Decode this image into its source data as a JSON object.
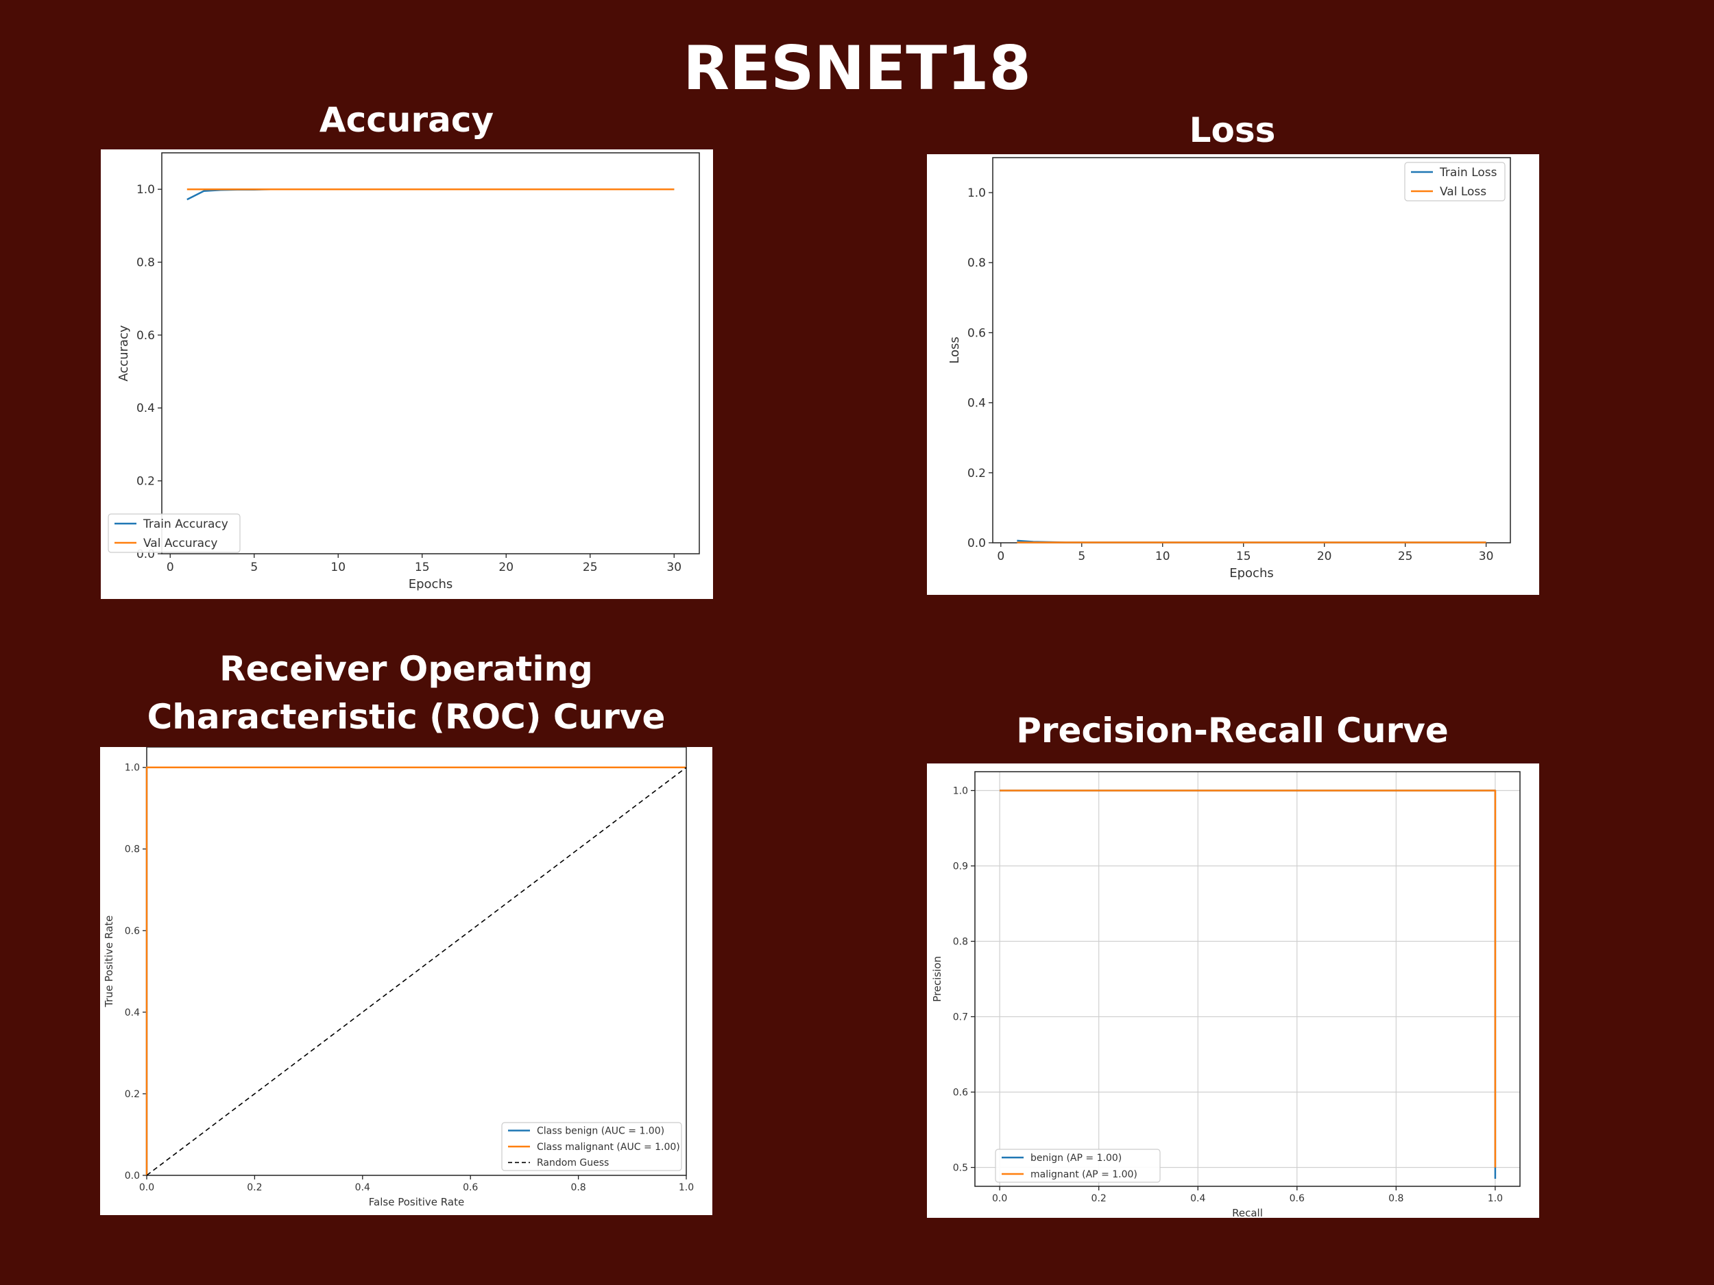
{
  "page": {
    "title": "RESNET18",
    "colors": {
      "background": "#4a0c05",
      "series_blue": "#1f77b4",
      "series_orange": "#ff7f0e"
    }
  },
  "chart_data": [
    {
      "id": "accuracy",
      "type": "line",
      "title": "Accuracy",
      "xlabel": "Epochs",
      "ylabel": "Accuracy",
      "xlim": [
        -0.5,
        31.5
      ],
      "ylim": [
        0,
        1.1
      ],
      "xticks": [
        0,
        5,
        10,
        15,
        20,
        25,
        30
      ],
      "yticks": [
        0.0,
        0.2,
        0.4,
        0.6,
        0.8,
        1.0
      ],
      "grid": false,
      "legend": "lower left",
      "x": [
        1,
        2,
        3,
        4,
        5,
        6,
        7,
        8,
        9,
        10,
        11,
        12,
        13,
        14,
        15,
        16,
        17,
        18,
        19,
        20,
        21,
        22,
        23,
        24,
        25,
        26,
        27,
        28,
        29,
        30
      ],
      "series": [
        {
          "name": "Train Accuracy",
          "color": "#1f77b4",
          "values": [
            0.972,
            0.995,
            0.998,
            0.999,
            0.999,
            1.0,
            1.0,
            1.0,
            1.0,
            1.0,
            1.0,
            1.0,
            1.0,
            1.0,
            1.0,
            1.0,
            1.0,
            1.0,
            1.0,
            1.0,
            1.0,
            1.0,
            1.0,
            1.0,
            1.0,
            1.0,
            1.0,
            1.0,
            1.0,
            1.0
          ]
        },
        {
          "name": "Val Accuracy",
          "color": "#ff7f0e",
          "values": [
            1.0,
            1.0,
            1.0,
            1.0,
            1.0,
            1.0,
            1.0,
            1.0,
            1.0,
            1.0,
            1.0,
            1.0,
            1.0,
            1.0,
            1.0,
            1.0,
            1.0,
            1.0,
            1.0,
            1.0,
            1.0,
            1.0,
            1.0,
            1.0,
            1.0,
            1.0,
            1.0,
            1.0,
            1.0,
            1.0
          ]
        }
      ]
    },
    {
      "id": "loss",
      "type": "line",
      "title": "Loss",
      "xlabel": "Epochs",
      "ylabel": "Loss",
      "xlim": [
        -0.5,
        31.5
      ],
      "ylim": [
        0,
        1.1
      ],
      "xticks": [
        0,
        5,
        10,
        15,
        20,
        25,
        30
      ],
      "yticks": [
        0.0,
        0.2,
        0.4,
        0.6,
        0.8,
        1.0
      ],
      "grid": false,
      "legend": "upper right",
      "x": [
        1,
        2,
        3,
        4,
        5,
        6,
        7,
        8,
        9,
        10,
        11,
        12,
        13,
        14,
        15,
        16,
        17,
        18,
        19,
        20,
        21,
        22,
        23,
        24,
        25,
        26,
        27,
        28,
        29,
        30
      ],
      "series": [
        {
          "name": "Train Loss",
          "color": "#1f77b4",
          "values": [
            0.006,
            0.003,
            0.002,
            0.001,
            0.001,
            0.001,
            0.001,
            0.001,
            0.001,
            0.001,
            0.001,
            0.001,
            0.001,
            0.001,
            0.001,
            0.001,
            0.001,
            0.001,
            0.001,
            0.001,
            0.001,
            0.001,
            0.001,
            0.001,
            0.001,
            0.001,
            0.001,
            0.001,
            0.001,
            0.001
          ]
        },
        {
          "name": "Val Loss",
          "color": "#ff7f0e",
          "values": [
            0.001,
            0.001,
            0.001,
            0.001,
            0.001,
            0.001,
            0.001,
            0.001,
            0.001,
            0.001,
            0.001,
            0.001,
            0.001,
            0.001,
            0.001,
            0.001,
            0.001,
            0.001,
            0.001,
            0.001,
            0.001,
            0.001,
            0.001,
            0.001,
            0.001,
            0.001,
            0.001,
            0.001,
            0.001,
            0.001
          ]
        }
      ]
    },
    {
      "id": "roc",
      "type": "line",
      "title": "Receiver Operating Characteristic (ROC) Curve",
      "xlabel": "False Positive Rate",
      "ylabel": "True Positive Rate",
      "xlim": [
        0,
        1
      ],
      "ylim": [
        0,
        1.05
      ],
      "xticks": [
        0.0,
        0.2,
        0.4,
        0.6,
        0.8,
        1.0
      ],
      "yticks": [
        0.0,
        0.2,
        0.4,
        0.6,
        0.8,
        1.0
      ],
      "grid": false,
      "legend": "lower right",
      "series": [
        {
          "name": "Class benign (AUC = 1.00)",
          "color": "#1f77b4",
          "x": [
            0,
            0,
            1
          ],
          "y": [
            0,
            1,
            1
          ]
        },
        {
          "name": "Class malignant (AUC = 1.00)",
          "color": "#ff7f0e",
          "x": [
            0,
            0,
            1
          ],
          "y": [
            0,
            1,
            1
          ]
        },
        {
          "name": "Random Guess",
          "color": "#000000",
          "dashed": true,
          "x": [
            0,
            1
          ],
          "y": [
            0,
            1
          ]
        }
      ]
    },
    {
      "id": "pr",
      "type": "line",
      "title": "Precision-Recall Curve",
      "xlabel": "Recall",
      "ylabel": "Precision",
      "xlim": [
        -0.05,
        1.05
      ],
      "ylim": [
        0.475,
        1.025
      ],
      "xticks": [
        0.0,
        0.2,
        0.4,
        0.6,
        0.8,
        1.0
      ],
      "yticks": [
        0.5,
        0.6,
        0.7,
        0.8,
        0.9,
        1.0
      ],
      "grid": true,
      "legend": "lower left",
      "series": [
        {
          "name": "benign (AP = 1.00)",
          "color": "#1f77b4",
          "x": [
            0,
            1,
            1,
            1
          ],
          "y": [
            1,
            1,
            0.515,
            0.485
          ]
        },
        {
          "name": "malignant (AP = 1.00)",
          "color": "#ff7f0e",
          "x": [
            0,
            1,
            1
          ],
          "y": [
            1,
            1,
            0.5
          ]
        }
      ]
    }
  ]
}
